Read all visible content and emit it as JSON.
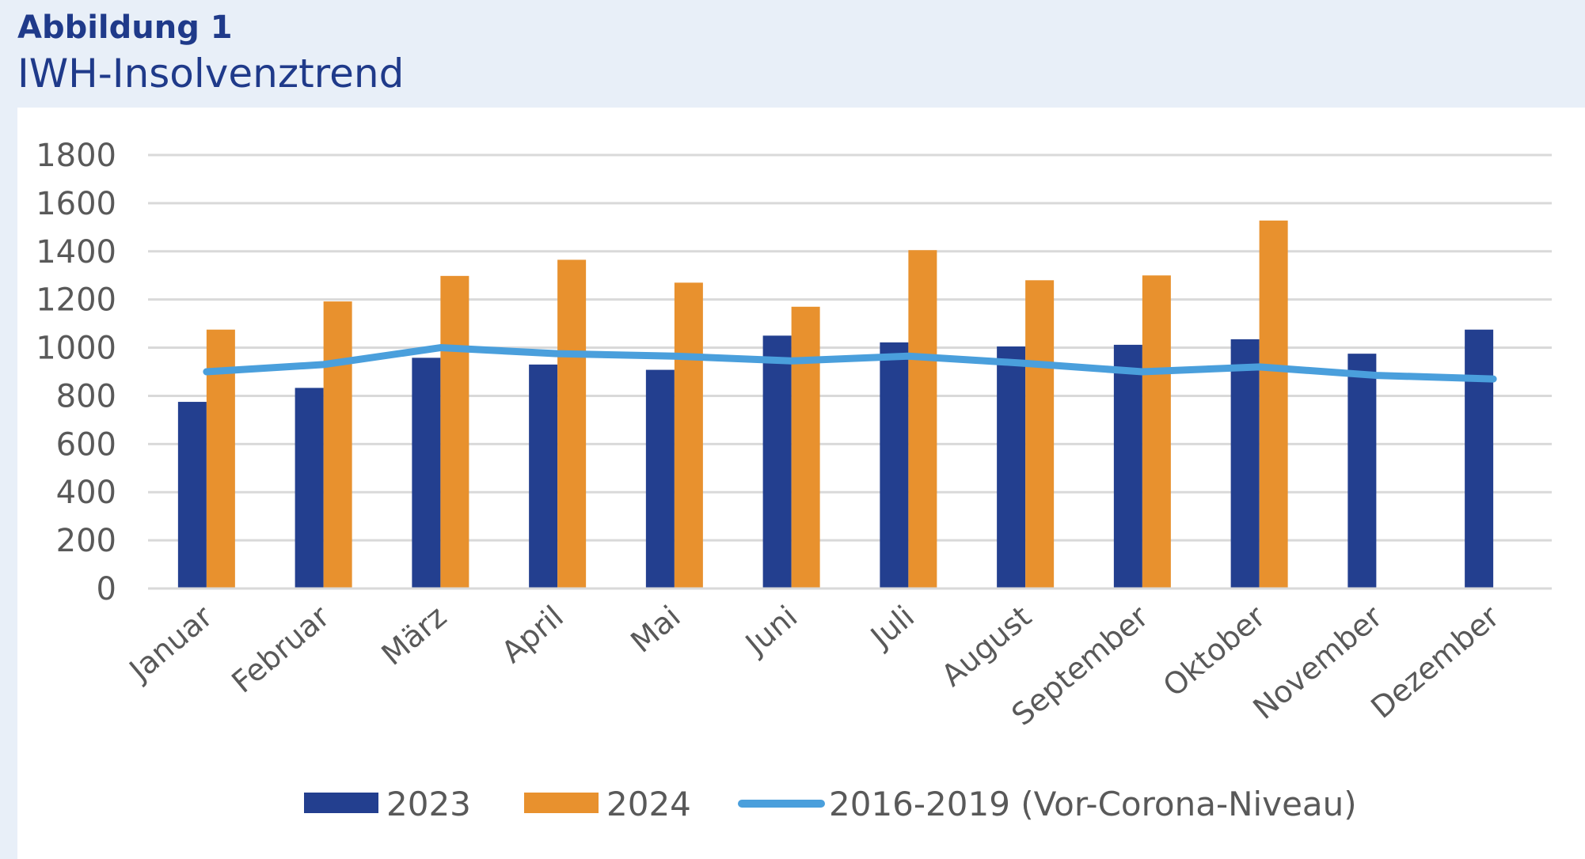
{
  "figure": {
    "label": "Abbildung 1",
    "title": "IWH-Insolvenztrend"
  },
  "colors": {
    "header_background": "#e8eff8",
    "series_2023": "#233f8f",
    "series_2024": "#e8912e",
    "series_baseline": "#4a9fdc",
    "title_color": "#1f3a8a"
  },
  "chart_data": {
    "type": "bar",
    "categories": [
      "Januar",
      "Februar",
      "März",
      "April",
      "Mai",
      "Juni",
      "Juli",
      "August",
      "September",
      "Oktober",
      "November",
      "Dezember"
    ],
    "series": [
      {
        "name": "2023",
        "kind": "bar",
        "values": [
          775,
          833,
          958,
          930,
          908,
          1050,
          1022,
          1005,
          1012,
          1035,
          975,
          1075
        ]
      },
      {
        "name": "2024",
        "kind": "bar",
        "values": [
          1075,
          1192,
          1298,
          1365,
          1270,
          1170,
          1405,
          1280,
          1300,
          1528,
          null,
          null
        ]
      },
      {
        "name": "2016-2019 (Vor-Corona-Niveau)",
        "kind": "line",
        "values": [
          900,
          930,
          1000,
          975,
          965,
          945,
          965,
          935,
          900,
          920,
          885,
          870
        ]
      }
    ],
    "yticks": [
      "0",
      "200",
      "400",
      "600",
      "800",
      "1000",
      "1200",
      "1400",
      "1600",
      "1800"
    ],
    "ylim": [
      0,
      1800
    ],
    "grid": true,
    "legend_position": "bottom"
  }
}
